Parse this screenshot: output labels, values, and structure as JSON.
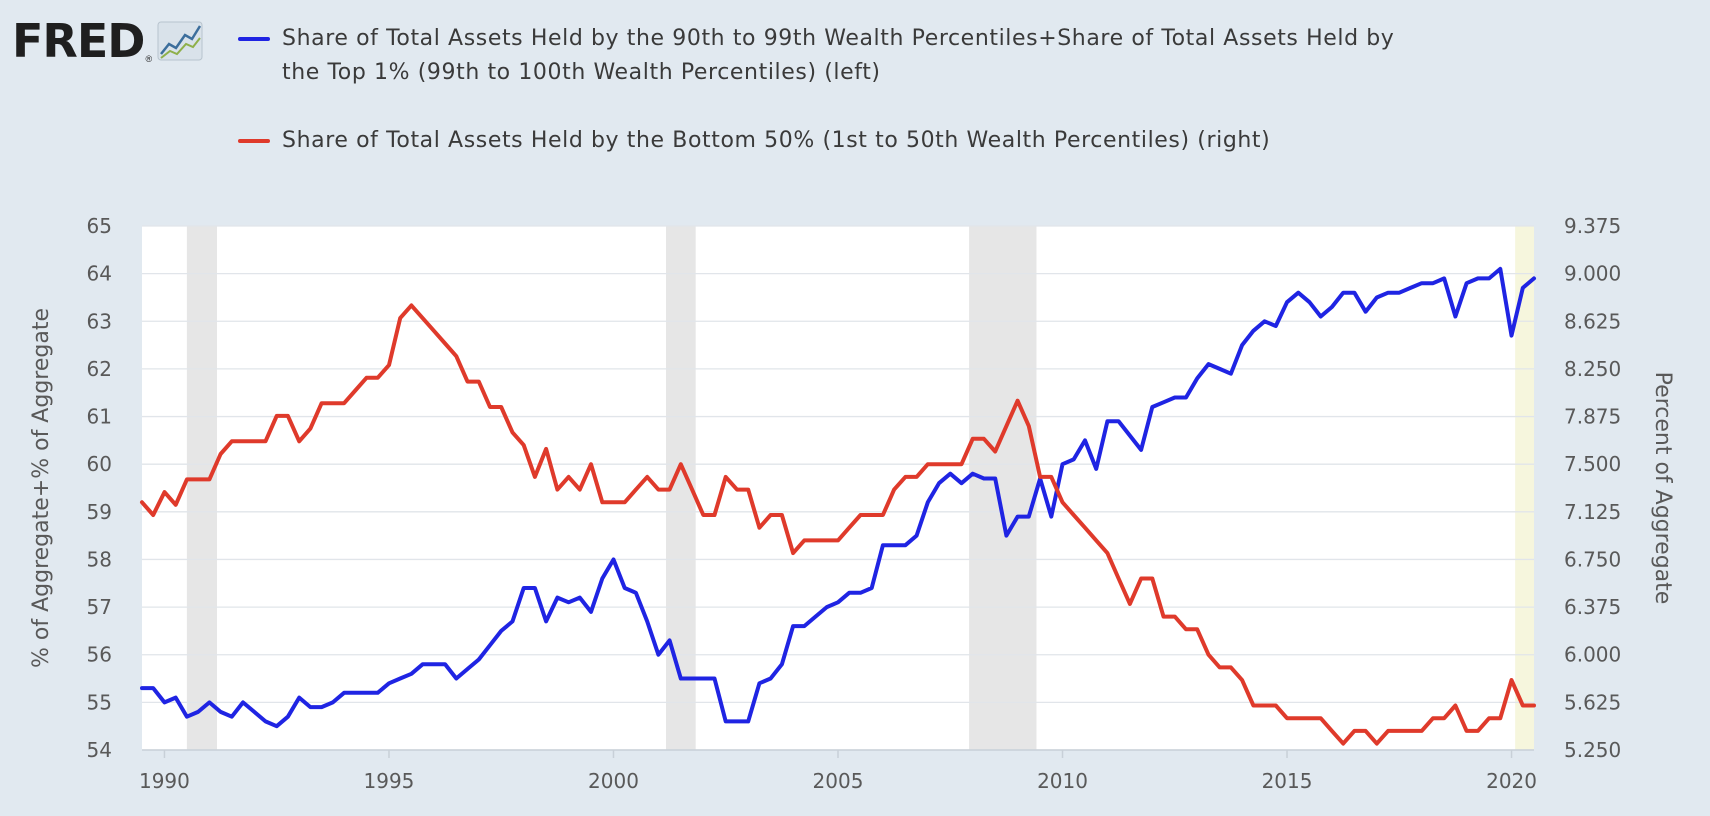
{
  "logo": {
    "text": "FRED",
    "reg": "®",
    "icon": "fred-chart-icon"
  },
  "legend": [
    {
      "label": "Share of Total Assets Held by the 90th to 99th Wealth Percentiles+Share of Total Assets Held by the Top 1% (99th to 100th Wealth Percentiles) (left)",
      "color": "#1f24e3"
    },
    {
      "label": "Share of Total Assets Held by the Bottom 50% (1st to 50th Wealth Percentiles) (right)",
      "color": "#df3a2b"
    }
  ],
  "chart_data": {
    "type": "line",
    "y_left_label": "% of Aggregate+% of Aggregate",
    "y_right_label": "Percent of Aggregate",
    "x_ticks": [
      "1990",
      "1995",
      "2000",
      "2005",
      "2010",
      "2015",
      "2020"
    ],
    "x_tick_values": [
      1990,
      1995,
      2000,
      2005,
      2010,
      2015,
      2020
    ],
    "y_left_ticks": [
      "54",
      "55",
      "56",
      "57",
      "58",
      "59",
      "60",
      "61",
      "62",
      "63",
      "64",
      "65"
    ],
    "y_left_range": [
      54,
      65
    ],
    "y_right_ticks": [
      "5.250",
      "5.625",
      "6.000",
      "6.375",
      "6.750",
      "7.125",
      "7.500",
      "7.875",
      "8.250",
      "8.625",
      "9.000",
      "9.375"
    ],
    "y_right_range": [
      5.25,
      9.375
    ],
    "x_range": [
      1989.5,
      2020.5
    ],
    "grid": true,
    "recessions": [
      [
        1990.5,
        1991.17
      ],
      [
        2001.17,
        2001.83
      ],
      [
        2007.92,
        2009.42
      ],
      [
        2020.08,
        2020.5
      ]
    ],
    "series": [
      {
        "axis": "left",
        "color": "#1f24e3",
        "x": [
          1989.5,
          1989.75,
          1990,
          1990.25,
          1990.5,
          1990.75,
          1991,
          1991.25,
          1991.5,
          1991.75,
          1992,
          1992.25,
          1992.5,
          1992.75,
          1993,
          1993.25,
          1993.5,
          1993.75,
          1994,
          1994.25,
          1994.5,
          1994.75,
          1995,
          1995.25,
          1995.5,
          1995.75,
          1996,
          1996.25,
          1996.5,
          1996.75,
          1997,
          1997.25,
          1997.5,
          1997.75,
          1998,
          1998.25,
          1998.5,
          1998.75,
          1999,
          1999.25,
          1999.5,
          1999.75,
          2000,
          2000.25,
          2000.5,
          2000.75,
          2001,
          2001.25,
          2001.5,
          2001.75,
          2002,
          2002.25,
          2002.5,
          2002.75,
          2003,
          2003.25,
          2003.5,
          2003.75,
          2004,
          2004.25,
          2004.5,
          2004.75,
          2005,
          2005.25,
          2005.5,
          2005.75,
          2006,
          2006.25,
          2006.5,
          2006.75,
          2007,
          2007.25,
          2007.5,
          2007.75,
          2008,
          2008.25,
          2008.5,
          2008.75,
          2009,
          2009.25,
          2009.5,
          2009.75,
          2010,
          2010.25,
          2010.5,
          2010.75,
          2011,
          2011.25,
          2011.5,
          2011.75,
          2012,
          2012.25,
          2012.5,
          2012.75,
          2013,
          2013.25,
          2013.5,
          2013.75,
          2014,
          2014.25,
          2014.5,
          2014.75,
          2015,
          2015.25,
          2015.5,
          2015.75,
          2016,
          2016.25,
          2016.5,
          2016.75,
          2017,
          2017.25,
          2017.5,
          2017.75,
          2018,
          2018.25,
          2018.5,
          2018.75,
          2019,
          2019.25,
          2019.5,
          2019.75,
          2020,
          2020.25,
          2020.5
        ],
        "values": [
          55.3,
          55.3,
          55.0,
          55.1,
          54.7,
          54.8,
          55.0,
          54.8,
          54.7,
          55.0,
          54.8,
          54.6,
          54.5,
          54.7,
          55.1,
          54.9,
          54.9,
          55.0,
          55.2,
          55.2,
          55.2,
          55.2,
          55.4,
          55.5,
          55.6,
          55.8,
          55.8,
          55.8,
          55.5,
          55.7,
          55.9,
          56.2,
          56.5,
          56.7,
          57.4,
          57.4,
          56.7,
          57.2,
          57.1,
          57.2,
          56.9,
          57.6,
          58.0,
          57.4,
          57.3,
          56.7,
          56.0,
          56.3,
          55.5,
          55.5,
          55.5,
          55.5,
          54.6,
          54.6,
          54.6,
          55.4,
          55.5,
          55.8,
          56.6,
          56.6,
          56.8,
          57.0,
          57.1,
          57.3,
          57.3,
          57.4,
          58.3,
          58.3,
          58.3,
          58.5,
          59.2,
          59.6,
          59.8,
          59.6,
          59.8,
          59.7,
          59.7,
          58.5,
          58.9,
          58.9,
          59.7,
          58.9,
          60.0,
          60.1,
          60.5,
          59.9,
          60.9,
          60.9,
          60.6,
          60.3,
          61.2,
          61.3,
          61.4,
          61.4,
          61.8,
          62.1,
          62.0,
          61.9,
          62.5,
          62.8,
          63.0,
          62.9,
          63.4,
          63.6,
          63.4,
          63.1,
          63.3,
          63.6,
          63.6,
          63.2,
          63.5,
          63.6,
          63.6,
          63.7,
          63.8,
          63.8,
          63.9,
          63.1,
          63.8,
          63.9,
          63.9,
          64.1,
          62.7,
          63.7,
          63.9
        ]
      },
      {
        "axis": "right",
        "color": "#df3a2b",
        "x": [
          1989.5,
          1989.75,
          1990,
          1990.25,
          1990.5,
          1990.75,
          1991,
          1991.25,
          1991.5,
          1991.75,
          1992,
          1992.25,
          1992.5,
          1992.75,
          1993,
          1993.25,
          1993.5,
          1993.75,
          1994,
          1994.25,
          1994.5,
          1994.75,
          1995,
          1995.25,
          1995.5,
          1995.75,
          1996,
          1996.25,
          1996.5,
          1996.75,
          1997,
          1997.25,
          1997.5,
          1997.75,
          1998,
          1998.25,
          1998.5,
          1998.75,
          1999,
          1999.25,
          1999.5,
          1999.75,
          2000,
          2000.25,
          2000.5,
          2000.75,
          2001,
          2001.25,
          2001.5,
          2001.75,
          2002,
          2002.25,
          2002.5,
          2002.75,
          2003,
          2003.25,
          2003.5,
          2003.75,
          2004,
          2004.25,
          2004.5,
          2004.75,
          2005,
          2005.25,
          2005.5,
          2005.75,
          2006,
          2006.25,
          2006.5,
          2006.75,
          2007,
          2007.25,
          2007.5,
          2007.75,
          2008,
          2008.25,
          2008.5,
          2008.75,
          2009,
          2009.25,
          2009.5,
          2009.75,
          2010,
          2010.25,
          2010.5,
          2010.75,
          2011,
          2011.25,
          2011.5,
          2011.75,
          2012,
          2012.25,
          2012.5,
          2012.75,
          2013,
          2013.25,
          2013.5,
          2013.75,
          2014,
          2014.25,
          2014.5,
          2014.75,
          2015,
          2015.25,
          2015.5,
          2015.75,
          2016,
          2016.25,
          2016.5,
          2016.75,
          2017,
          2017.25,
          2017.5,
          2017.75,
          2018,
          2018.25,
          2018.5,
          2018.75,
          2019,
          2019.25,
          2019.5,
          2019.75,
          2020,
          2020.25,
          2020.5
        ],
        "values": [
          7.2,
          7.1,
          7.28,
          7.18,
          7.38,
          7.38,
          7.38,
          7.58,
          7.68,
          7.68,
          7.68,
          7.68,
          7.88,
          7.88,
          7.68,
          7.78,
          7.98,
          7.98,
          7.98,
          8.08,
          8.18,
          8.18,
          8.28,
          8.65,
          8.75,
          8.65,
          8.55,
          8.45,
          8.35,
          8.15,
          8.15,
          7.95,
          7.95,
          7.75,
          7.65,
          7.4,
          7.62,
          7.3,
          7.4,
          7.3,
          7.5,
          7.2,
          7.2,
          7.2,
          7.3,
          7.4,
          7.3,
          7.3,
          7.5,
          7.3,
          7.1,
          7.1,
          7.4,
          7.3,
          7.3,
          7.0,
          7.1,
          7.1,
          6.8,
          6.9,
          6.9,
          6.9,
          6.9,
          7.0,
          7.1,
          7.1,
          7.1,
          7.3,
          7.4,
          7.4,
          7.5,
          7.5,
          7.5,
          7.5,
          7.7,
          7.7,
          7.6,
          7.8,
          8.0,
          7.8,
          7.4,
          7.4,
          7.2,
          7.1,
          7.0,
          6.9,
          6.8,
          6.6,
          6.4,
          6.6,
          6.6,
          6.3,
          6.3,
          6.2,
          6.2,
          6.0,
          5.9,
          5.9,
          5.8,
          5.6,
          5.6,
          5.6,
          5.5,
          5.5,
          5.5,
          5.5,
          5.4,
          5.3,
          5.4,
          5.4,
          5.3,
          5.4,
          5.4,
          5.4,
          5.4,
          5.5,
          5.5,
          5.6,
          5.4,
          5.4,
          5.5,
          5.5,
          5.8,
          5.6,
          5.6
        ]
      }
    ]
  }
}
